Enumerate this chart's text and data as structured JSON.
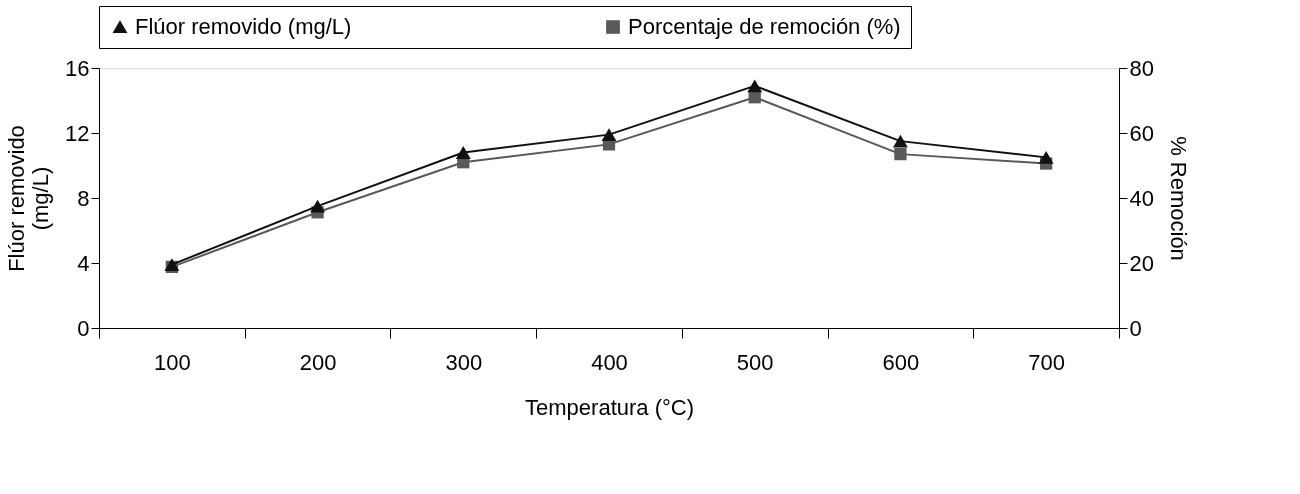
{
  "chart_data": {
    "type": "line",
    "xlabel": "Temperatura (°C)",
    "ylabel": "Flúor removido\n(mg/L)",
    "y2label": "% Remoción",
    "categories": [
      "100",
      "200",
      "300",
      "400",
      "500",
      "600",
      "700"
    ],
    "series": [
      {
        "name": "Flúor removido (mg/L)",
        "color": "#111111",
        "marker": "triangle",
        "values": [
          3.9,
          7.5,
          10.8,
          11.9,
          14.9,
          11.5,
          10.5
        ]
      },
      {
        "name": "Porcentaje de remoción (%)",
        "color": "#595959",
        "marker": "square",
        "axis": "y2",
        "values": [
          18.8,
          35.6,
          51,
          56.5,
          71,
          53.5,
          50.6
        ]
      }
    ],
    "ylim": [
      0,
      16
    ],
    "yticks": [
      0,
      4,
      8,
      12,
      16
    ],
    "y2lim": [
      0,
      80
    ],
    "y2ticks": [
      0,
      20,
      40,
      60,
      80
    ],
    "grid": false,
    "legend": "top",
    "line_style": "solid"
  }
}
